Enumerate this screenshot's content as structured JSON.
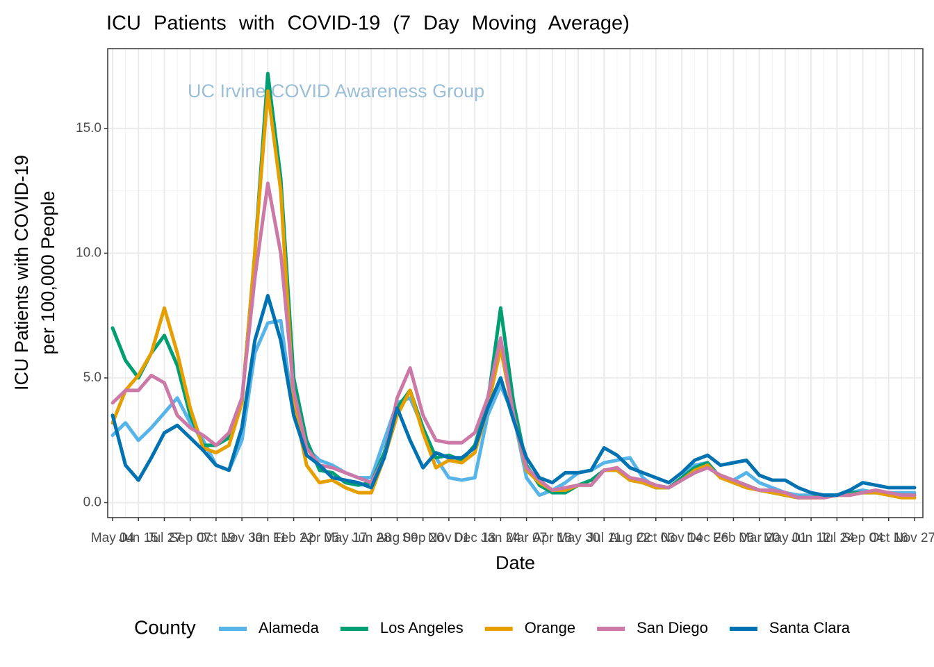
{
  "chart_data": {
    "type": "line",
    "title": "ICU Patients with COVID-19 (7 Day Moving Average)",
    "annotation": "UC Irvine COVID Awareness Group",
    "x_label": "Date",
    "y_label_lines": [
      "ICU Patients with COVID-19",
      "per 100,000 People"
    ],
    "legend_title": "County",
    "legend_position": "bottom",
    "grid": true,
    "categories": [
      "May 04",
      null,
      "Jun 15",
      null,
      "Jul 27",
      null,
      "Sep 07",
      null,
      "Oct 19",
      null,
      "Nov 30",
      null,
      "Jan 11",
      null,
      "Feb 22",
      null,
      "Apr 05",
      null,
      "May 17",
      null,
      "Jun 28",
      null,
      "Aug 09",
      null,
      "Sep 20",
      null,
      "Nov 01",
      null,
      "Dec 13",
      null,
      "Jan 24",
      null,
      "Mar 07",
      null,
      "Apr 18",
      null,
      "May 30",
      null,
      "Jul 11",
      null,
      "Aug 22",
      null,
      "Oct 03",
      null,
      "Nov 14",
      null,
      "Dec 26",
      null,
      "Feb 06",
      null,
      "Mar 20",
      null,
      "May 01",
      null,
      "Jun 12",
      null,
      "Jul 24",
      null,
      "Sep 04",
      null,
      "Oct 16",
      null,
      "Nov 27"
    ],
    "ylim": [
      -0.6,
      18.2
    ],
    "yticks": [
      {
        "value": 0,
        "label": "0.0"
      },
      {
        "value": 5,
        "label": "5.0"
      },
      {
        "value": 10,
        "label": "10.0"
      },
      {
        "value": 15,
        "label": "15.0"
      }
    ],
    "series": [
      {
        "name": "Alameda",
        "color": "#56B4E9",
        "values": [
          2.7,
          3.2,
          2.5,
          3.0,
          3.6,
          4.2,
          3.2,
          2.5,
          1.5,
          1.3,
          2.5,
          6,
          7.2,
          7.3,
          3.5,
          2.2,
          1.7,
          1.5,
          1.2,
          1.0,
          1.0,
          2.5,
          4.0,
          4.2,
          3.0,
          1.8,
          1.0,
          0.9,
          1.0,
          3.5,
          4.7,
          3.5,
          1.0,
          0.3,
          0.5,
          0.8,
          1.2,
          1.3,
          1.6,
          1.7,
          1.8,
          1.0,
          0.6,
          0.6,
          1.0,
          1.5,
          1.6,
          1.0,
          0.9,
          1.2,
          0.8,
          0.6,
          0.4,
          0.3,
          0.3,
          0.3,
          0.3,
          0.4,
          0.5,
          0.4,
          0.4,
          0.4,
          0.4
        ]
      },
      {
        "name": "Los Angeles",
        "color": "#009E73",
        "values": [
          7.0,
          5.7,
          5.0,
          6.0,
          6.7,
          5.5,
          3.5,
          2.3,
          2.3,
          2.6,
          4.0,
          10,
          17.2,
          13,
          5,
          2.5,
          1.3,
          1.2,
          0.8,
          0.7,
          0.8,
          2,
          3.8,
          4.5,
          3,
          1.8,
          1.9,
          1.7,
          2.3,
          4,
          7.8,
          4,
          1.5,
          0.7,
          0.4,
          0.4,
          0.7,
          0.9,
          1.3,
          1.3,
          0.9,
          0.8,
          0.6,
          0.6,
          1.0,
          1.4,
          1.6,
          1.0,
          0.9,
          0.7,
          0.5,
          0.4,
          0.3,
          0.2,
          0.2,
          0.3,
          0.3,
          0.4,
          0.4,
          0.4,
          0.4,
          0.3,
          0.3
        ]
      },
      {
        "name": "Orange",
        "color": "#E69F00",
        "values": [
          3.2,
          4.5,
          5.1,
          6.0,
          7.8,
          6,
          3.8,
          2.2,
          2.0,
          2.3,
          4,
          10,
          16.5,
          12.5,
          4,
          1.5,
          0.8,
          0.9,
          0.6,
          0.4,
          0.4,
          1.8,
          3.5,
          4.5,
          2.8,
          1.4,
          1.7,
          1.6,
          2.0,
          3.8,
          6.2,
          3.5,
          1.3,
          0.8,
          0.5,
          0.5,
          0.7,
          0.7,
          1.3,
          1.3,
          0.9,
          0.8,
          0.6,
          0.6,
          0.9,
          1.3,
          1.5,
          1.0,
          0.8,
          0.6,
          0.5,
          0.4,
          0.3,
          0.2,
          0.2,
          0.2,
          0.3,
          0.3,
          0.4,
          0.4,
          0.3,
          0.2,
          0.2
        ]
      },
      {
        "name": "San Diego",
        "color": "#CC79A7",
        "values": [
          4.0,
          4.5,
          4.5,
          5.1,
          4.8,
          3.5,
          3.0,
          2.7,
          2.3,
          2.8,
          4.2,
          9,
          12.8,
          10,
          4.5,
          2.2,
          1.5,
          1.4,
          1.2,
          1.0,
          0.8,
          1.8,
          4.2,
          5.4,
          3.5,
          2.5,
          2.4,
          2.4,
          2.8,
          4.2,
          6.6,
          3.5,
          1.4,
          0.9,
          0.5,
          0.6,
          0.7,
          0.7,
          1.3,
          1.4,
          1.0,
          0.9,
          0.7,
          0.6,
          0.9,
          1.2,
          1.4,
          1.1,
          0.9,
          0.7,
          0.5,
          0.5,
          0.4,
          0.2,
          0.2,
          0.2,
          0.3,
          0.3,
          0.4,
          0.5,
          0.4,
          0.3,
          0.3
        ]
      },
      {
        "name": "Santa Clara",
        "color": "#0072B2",
        "values": [
          3.5,
          1.5,
          0.9,
          1.8,
          2.8,
          3.1,
          2.6,
          2.1,
          1.5,
          1.3,
          3.0,
          6.5,
          8.3,
          6.5,
          3.5,
          1.9,
          1.5,
          1.0,
          0.9,
          0.8,
          0.6,
          1.8,
          3.8,
          2.5,
          1.4,
          2.0,
          1.8,
          1.8,
          2.2,
          3.8,
          5.0,
          3.3,
          1.8,
          1.0,
          0.8,
          1.2,
          1.2,
          1.3,
          2.2,
          1.9,
          1.4,
          1.2,
          1.0,
          0.8,
          1.2,
          1.7,
          1.9,
          1.5,
          1.6,
          1.7,
          1.1,
          0.9,
          0.9,
          0.6,
          0.4,
          0.3,
          0.3,
          0.5,
          0.8,
          0.7,
          0.6,
          0.6,
          0.6
        ]
      }
    ]
  }
}
